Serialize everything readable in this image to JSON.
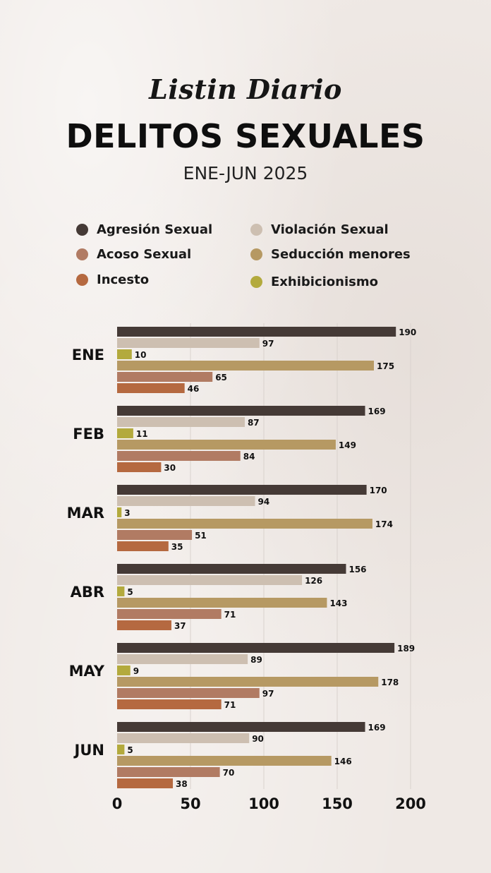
{
  "header": {
    "brand": "Listin Diario",
    "title": "DELITOS SEXUALES",
    "subtitle": "ENE-JUN 2025"
  },
  "colors": {
    "Agresión Sexual": "#453a36",
    "Violación Sexual": "#cdbfb1",
    "Exhibicionismo": "#b3aa3d",
    "Seducción menores": "#b69963",
    "Acoso Sexual": "#b17b63",
    "Incesto": "#b56940",
    "gridline": "#d9d2cd"
  },
  "legend": [
    {
      "label": "Agresión Sexual",
      "color": "#453a36"
    },
    {
      "label": "Violación Sexual",
      "color": "#cdbfb1"
    },
    {
      "label": "Acoso Sexual",
      "color": "#b17b63"
    },
    {
      "label": "Seducción menores",
      "color": "#b69963"
    },
    {
      "label": "Incesto",
      "color": "#b56940"
    },
    {
      "label": "Exhibicionismo",
      "color": "#b3aa3d"
    }
  ],
  "chart_data": {
    "type": "bar",
    "orientation": "horizontal",
    "title": "DELITOS SEXUALES",
    "subtitle": "ENE-JUN 2025",
    "categories": [
      "ENE",
      "FEB",
      "MAR",
      "ABR",
      "MAY",
      "JUN"
    ],
    "series": [
      {
        "name": "Agresión Sexual",
        "values": [
          190,
          169,
          170,
          156,
          189,
          169
        ]
      },
      {
        "name": "Violación Sexual",
        "values": [
          97,
          87,
          94,
          126,
          89,
          90
        ]
      },
      {
        "name": "Exhibicionismo",
        "values": [
          10,
          11,
          3,
          5,
          9,
          5
        ]
      },
      {
        "name": "Seducción menores",
        "values": [
          175,
          149,
          174,
          143,
          178,
          146
        ]
      },
      {
        "name": "Acoso Sexual",
        "values": [
          65,
          84,
          51,
          71,
          97,
          70
        ]
      },
      {
        "name": "Incesto",
        "values": [
          46,
          30,
          35,
          37,
          71,
          38
        ]
      }
    ],
    "xlim": [
      0,
      200
    ],
    "xticks": [
      0,
      50,
      100,
      150,
      200
    ],
    "grid": true,
    "legend_position": "top"
  }
}
